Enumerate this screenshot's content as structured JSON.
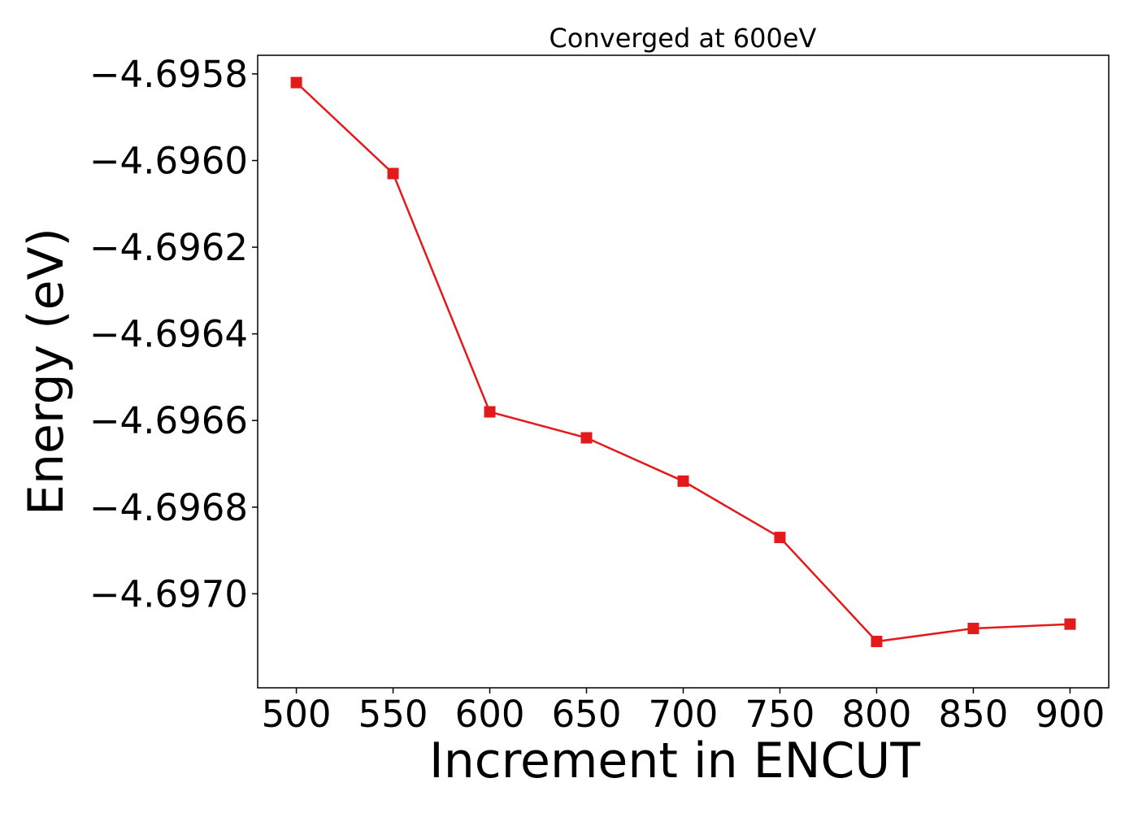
{
  "chart_data": {
    "type": "line",
    "title": "Converged at 600eV",
    "xlabel": "Increment in ENCUT",
    "ylabel": "Energy (eV)",
    "x": [
      500,
      550,
      600,
      650,
      700,
      750,
      800,
      850,
      900
    ],
    "series": [
      {
        "color": "#e31a1c",
        "marker": "square",
        "values": [
          -4.69582,
          -4.69603,
          -4.69658,
          -4.69664,
          -4.69674,
          -4.69687,
          -4.69711,
          -4.69708,
          -4.69707
        ]
      }
    ],
    "xticks": [
      500,
      550,
      600,
      650,
      700,
      750,
      800,
      850,
      900
    ],
    "xtick_labels": [
      "500",
      "550",
      "600",
      "650",
      "700",
      "750",
      "800",
      "850",
      "900"
    ],
    "yticks": [
      -4.6958,
      -4.696,
      -4.6962,
      -4.6964,
      -4.6966,
      -4.6968,
      -4.697
    ],
    "ytick_labels": [
      "−4.6958",
      "−4.6960",
      "−4.6962",
      "−4.6964",
      "−4.6966",
      "−4.6968",
      "−4.6970"
    ],
    "xlim": [
      480,
      920
    ],
    "ylim": [
      -4.697217,
      -4.695757
    ],
    "grid": false,
    "legend": "none"
  }
}
